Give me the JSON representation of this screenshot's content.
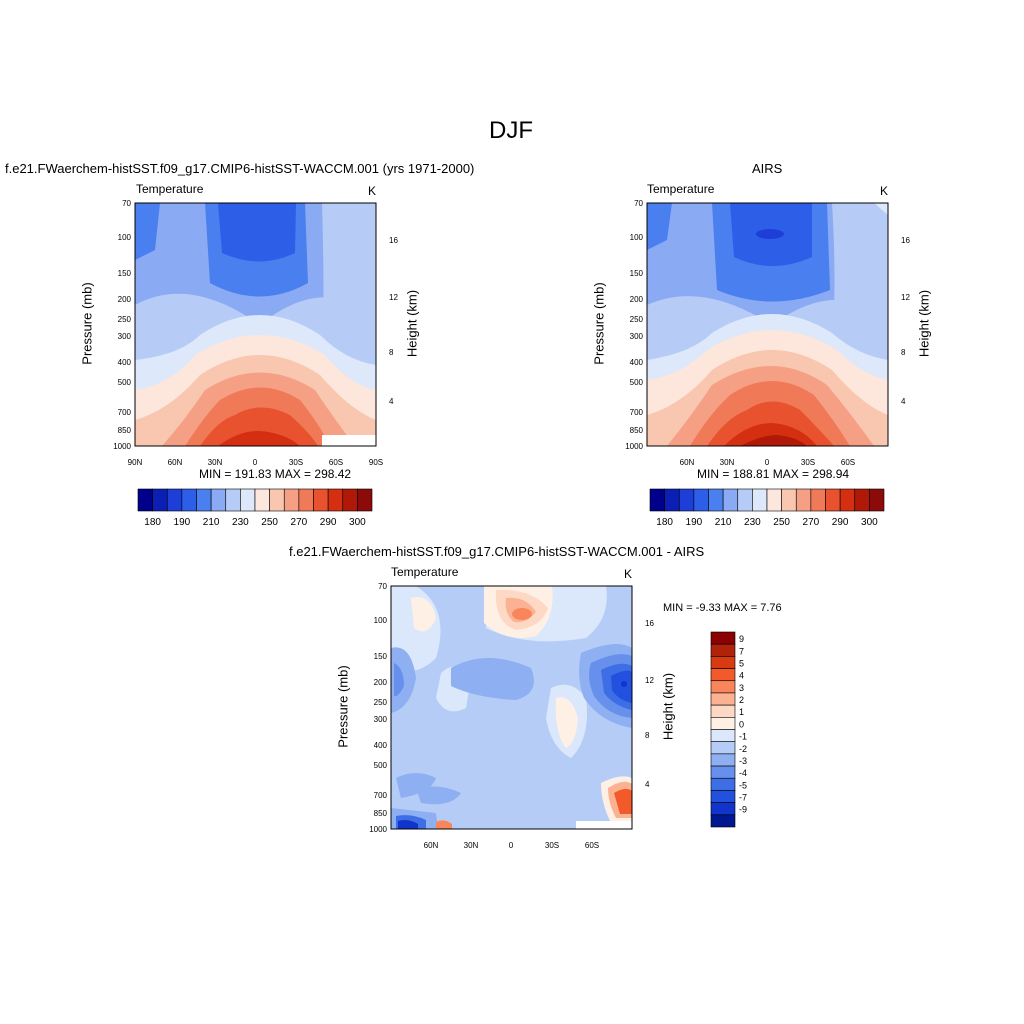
{
  "page": {
    "title": "DJF",
    "panel1_title": "f.e21.FWaerchem-histSST.f09_g17.CMIP6-histSST-WACCM.001 (yrs 1971-2000)",
    "panel2_title": "AIRS",
    "panel3_title": "f.e21.FWaerchem-histSST.f09_g17.CMIP6-histSST-WACCM.001 - AIRS"
  },
  "chart_data": [
    {
      "type": "heatmap",
      "title": "f.e21.FWaerchem-histSST.f09_g17.CMIP6-histSST-WACCM.001 (yrs 1971-2000)",
      "left_label": "Temperature",
      "right_label": "K",
      "ylabel": "Pressure (mb)",
      "y2label": "Height (km)",
      "xticks": [
        "90N",
        "60N",
        "30N",
        "0",
        "30S",
        "60S",
        "90S"
      ],
      "yticks": [
        70,
        100,
        150,
        200,
        250,
        300,
        400,
        500,
        700,
        850,
        1000
      ],
      "y2ticks": [
        4,
        8,
        12,
        16
      ],
      "stats": "MIN = 191.83  MAX = 298.42",
      "min": 191.83,
      "max": 298.42,
      "colorbar_labels": [
        "180",
        "190",
        "210",
        "230",
        "250",
        "270",
        "290",
        "300"
      ]
    },
    {
      "type": "heatmap",
      "title": "AIRS",
      "left_label": "Temperature",
      "right_label": "K",
      "ylabel": "Pressure (mb)",
      "y2label": "Height (km)",
      "xticks": [
        "60N",
        "30N",
        "0",
        "30S",
        "60S"
      ],
      "yticks": [
        70,
        100,
        150,
        200,
        250,
        300,
        400,
        500,
        700,
        850,
        1000
      ],
      "y2ticks": [
        4,
        8,
        12,
        16
      ],
      "stats": "MIN = 188.81  MAX = 298.94",
      "min": 188.81,
      "max": 298.94,
      "colorbar_labels": [
        "180",
        "190",
        "210",
        "230",
        "250",
        "270",
        "290",
        "300"
      ]
    },
    {
      "type": "heatmap",
      "title": "f.e21.FWaerchem-histSST.f09_g17.CMIP6-histSST-WACCM.001 - AIRS",
      "left_label": "Temperature",
      "right_label": "K",
      "ylabel": "Pressure (mb)",
      "y2label": "Height (km)",
      "xticks": [
        "60N",
        "30N",
        "0",
        "30S",
        "60S"
      ],
      "yticks": [
        70,
        100,
        150,
        200,
        250,
        300,
        400,
        500,
        700,
        850,
        1000
      ],
      "y2ticks": [
        4,
        8,
        12,
        16
      ],
      "stats": "MIN =  -9.33  MAX =   7.76",
      "min": -9.33,
      "max": 7.76,
      "colorbar_labels": [
        "9",
        "7",
        "5",
        "4",
        "3",
        "2",
        "1",
        "0",
        "-1",
        "-2",
        "-3",
        "-4",
        "-5",
        "-7",
        "-9"
      ]
    }
  ],
  "palette_temp": [
    "#00008b",
    "#0b1fb4",
    "#1d3ed8",
    "#2c5ee8",
    "#4a7ff0",
    "#8aaaf4",
    "#b6ccf7",
    "#dde8fb",
    "#fde6dc",
    "#f9c6b0",
    "#f5a085",
    "#f07a58",
    "#e8522e",
    "#d52f12",
    "#b01808",
    "#8b0a0a"
  ],
  "palette_diff": [
    "#8b0000",
    "#b0230a",
    "#d83a12",
    "#f25a2a",
    "#f8865a",
    "#fab292",
    "#fdd8c4",
    "#fff0e6",
    "#dbe7fb",
    "#b5cdf6",
    "#8eaff1",
    "#6690ec",
    "#3e6ee6",
    "#2250df",
    "#1034cc",
    "#00188f"
  ]
}
